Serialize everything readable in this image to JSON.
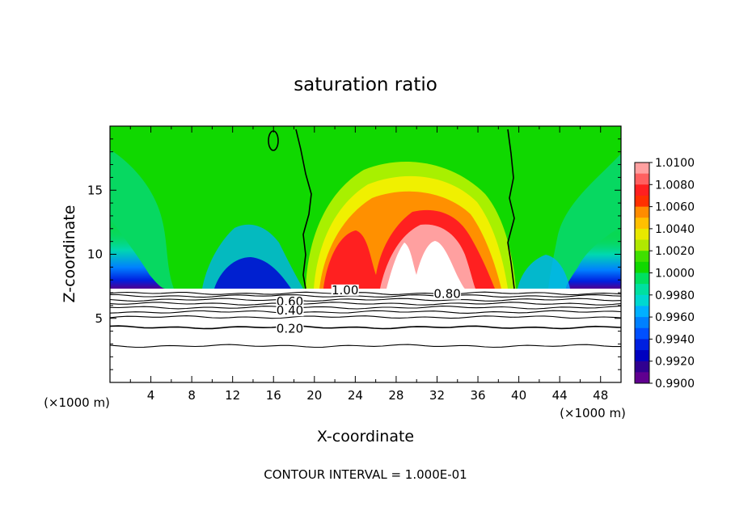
{
  "chart_data": {
    "type": "heatmap",
    "title": "saturation ratio",
    "xlabel": "X-coordinate",
    "ylabel": "Z-coordinate",
    "x_unit_left": "(×1000 m)",
    "x_unit_right": "(×1000 m)",
    "footer": "CONTOUR INTERVAL = 1.000E-01",
    "xlim": [
      0,
      50
    ],
    "ylim": [
      0,
      20
    ],
    "x_ticks": [
      4,
      8,
      12,
      16,
      20,
      24,
      28,
      32,
      36,
      40,
      44,
      48
    ],
    "y_ticks": [
      5,
      10,
      15
    ],
    "colorbar": {
      "levels": [
        "1.0100",
        "1.0080",
        "1.0060",
        "1.0040",
        "1.0020",
        "1.0000",
        "0.9980",
        "0.9960",
        "0.9940",
        "0.9920",
        "0.9900"
      ],
      "colors": [
        "#ffa0a0",
        "#ff4040",
        "#ff2020",
        "#ff8c00",
        "#ffc000",
        "#e8e800",
        "#40e000",
        "#10d800",
        "#00e0a0",
        "#00b0ff",
        "#0050ff",
        "#0000d0",
        "#600090"
      ]
    },
    "contour_labels": [
      {
        "text": "1.00",
        "x": 23,
        "z": 7.2
      },
      {
        "text": "0.80",
        "x": 33,
        "z": 6.9
      },
      {
        "text": "0.60",
        "x": 17.6,
        "z": 6.3
      },
      {
        "text": "0.40",
        "x": 17.6,
        "z": 5.6
      },
      {
        "text": "0.20",
        "x": 17.6,
        "z": 4.2
      }
    ],
    "contour_lines_z": [
      6.95,
      6.75,
      6.45,
      6.15,
      5.85,
      5.5,
      5.1,
      4.3,
      2.85
    ],
    "threshold_line_x": [
      19.3,
      39.5
    ]
  }
}
